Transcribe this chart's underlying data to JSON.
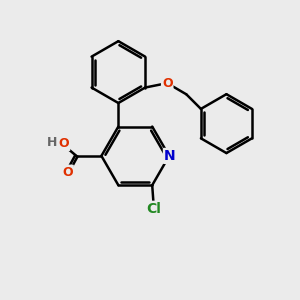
{
  "background_color": "#ebebeb",
  "bond_color": "#000000",
  "bond_width": 1.8,
  "atom_colors": {
    "O": "#e03000",
    "N": "#0000cc",
    "Cl": "#228822",
    "H": "#666666",
    "C": "#000000"
  },
  "font_size": 9,
  "figsize": [
    3.0,
    3.0
  ],
  "dpi": 100
}
